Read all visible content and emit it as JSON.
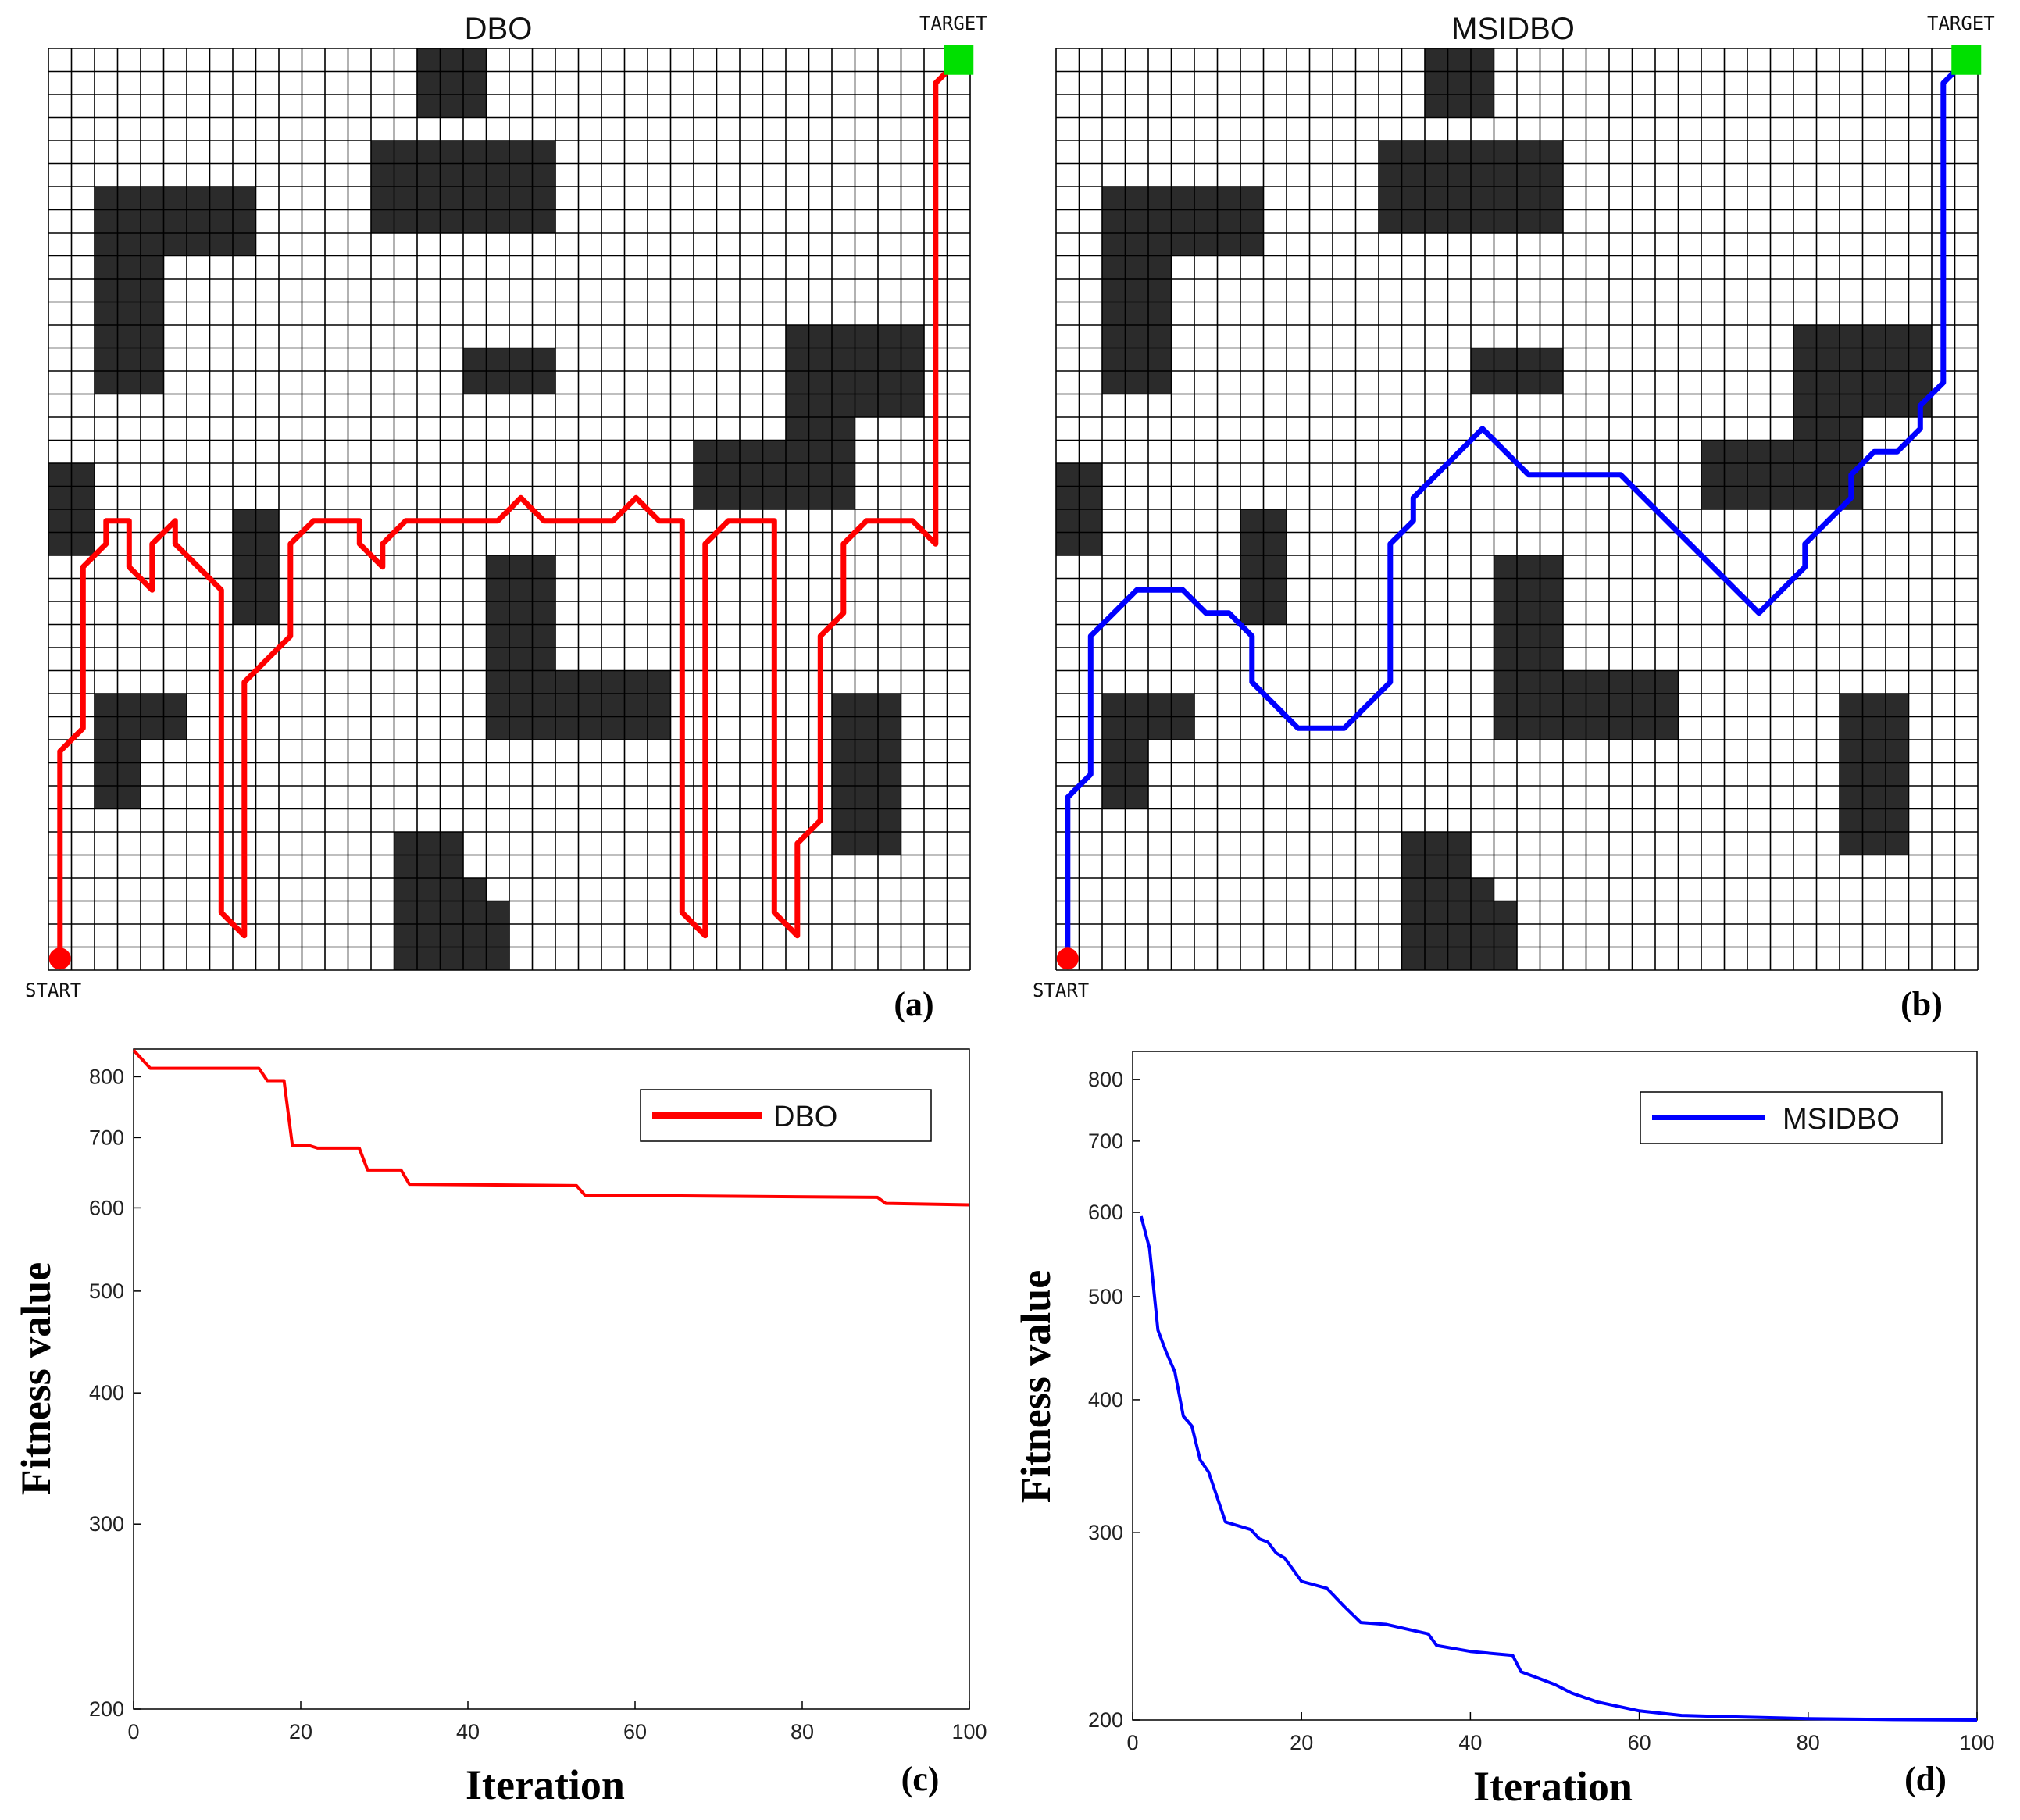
{
  "grid_common": {
    "size": 40,
    "obstacles": [
      [
        16,
        0,
        3,
        1
      ],
      [
        16,
        1,
        3,
        1
      ],
      [
        16,
        2,
        3,
        1
      ],
      [
        14,
        4,
        8,
        1
      ],
      [
        14,
        5,
        8,
        1
      ],
      [
        14,
        6,
        8,
        1
      ],
      [
        14,
        7,
        8,
        1
      ],
      [
        2,
        6,
        7,
        1
      ],
      [
        2,
        7,
        7,
        1
      ],
      [
        2,
        8,
        7,
        1
      ],
      [
        2,
        9,
        3,
        1
      ],
      [
        2,
        10,
        3,
        1
      ],
      [
        2,
        11,
        3,
        1
      ],
      [
        2,
        12,
        3,
        1
      ],
      [
        2,
        13,
        3,
        1
      ],
      [
        2,
        14,
        3,
        1
      ],
      [
        18,
        13,
        4,
        1
      ],
      [
        18,
        14,
        4,
        1
      ],
      [
        32,
        12,
        6,
        1
      ],
      [
        32,
        13,
        6,
        1
      ],
      [
        32,
        14,
        6,
        1
      ],
      [
        32,
        15,
        6,
        1
      ],
      [
        32,
        16,
        3,
        1
      ],
      [
        28,
        17,
        7,
        1
      ],
      [
        28,
        18,
        7,
        1
      ],
      [
        28,
        19,
        7,
        1
      ],
      [
        0,
        18,
        2,
        1
      ],
      [
        0,
        19,
        2,
        1
      ],
      [
        0,
        20,
        2,
        1
      ],
      [
        0,
        21,
        2,
        1
      ],
      [
        8,
        20,
        2,
        1
      ],
      [
        8,
        21,
        2,
        1
      ],
      [
        8,
        22,
        2,
        1
      ],
      [
        8,
        23,
        2,
        1
      ],
      [
        8,
        24,
        2,
        1
      ],
      [
        19,
        22,
        3,
        1
      ],
      [
        19,
        23,
        3,
        1
      ],
      [
        19,
        24,
        3,
        1
      ],
      [
        19,
        25,
        3,
        1
      ],
      [
        19,
        26,
        3,
        1
      ],
      [
        19,
        27,
        8,
        1
      ],
      [
        19,
        28,
        8,
        1
      ],
      [
        19,
        29,
        8,
        1
      ],
      [
        2,
        28,
        4,
        1
      ],
      [
        2,
        29,
        4,
        1
      ],
      [
        2,
        30,
        2,
        1
      ],
      [
        2,
        31,
        2,
        1
      ],
      [
        2,
        32,
        2,
        1
      ],
      [
        34,
        28,
        3,
        1
      ],
      [
        34,
        29,
        3,
        1
      ],
      [
        34,
        30,
        3,
        1
      ],
      [
        34,
        31,
        3,
        1
      ],
      [
        34,
        32,
        3,
        1
      ],
      [
        34,
        33,
        3,
        1
      ],
      [
        34,
        34,
        3,
        1
      ],
      [
        15,
        34,
        3,
        1
      ],
      [
        15,
        35,
        3,
        1
      ],
      [
        15,
        36,
        4,
        1
      ],
      [
        15,
        37,
        5,
        1
      ],
      [
        15,
        38,
        5,
        1
      ],
      [
        15,
        39,
        5,
        1
      ]
    ],
    "start_label": "START",
    "target_label": "TARGET",
    "start_color": "#ff0000",
    "target_color": "#00e000",
    "obstacle_color": "#2b2b2b"
  },
  "panels": [
    {
      "title": "DBO",
      "tag": "(a)",
      "path_color": "#ff0000",
      "path": [
        [
          0.5,
          39.5
        ],
        [
          0.5,
          30.5
        ],
        [
          1.5,
          29.5
        ],
        [
          1.5,
          22.5
        ],
        [
          2.5,
          21.5
        ],
        [
          2.5,
          20.5
        ],
        [
          3.5,
          20.5
        ],
        [
          3.5,
          22.5
        ],
        [
          4.5,
          23.5
        ],
        [
          4.5,
          21.5
        ],
        [
          5.5,
          20.5
        ],
        [
          5.5,
          21.5
        ],
        [
          7.5,
          23.5
        ],
        [
          7.5,
          37.5
        ],
        [
          8.5,
          38.5
        ],
        [
          8.5,
          27.5
        ],
        [
          10.5,
          25.5
        ],
        [
          10.5,
          21.5
        ],
        [
          11.5,
          20.5
        ],
        [
          13.5,
          20.5
        ],
        [
          13.5,
          21.5
        ],
        [
          14.5,
          22.5
        ],
        [
          14.5,
          21.5
        ],
        [
          15.5,
          20.5
        ],
        [
          19.5,
          20.5
        ],
        [
          20.5,
          19.5
        ],
        [
          21.5,
          20.5
        ],
        [
          24.5,
          20.5
        ],
        [
          25.5,
          19.5
        ],
        [
          26.5,
          20.5
        ],
        [
          27.5,
          20.5
        ],
        [
          27.5,
          37.5
        ],
        [
          28.5,
          38.5
        ],
        [
          28.5,
          21.5
        ],
        [
          29.5,
          20.5
        ],
        [
          31.5,
          20.5
        ],
        [
          31.5,
          37.5
        ],
        [
          32.5,
          38.5
        ],
        [
          32.5,
          34.5
        ],
        [
          33.5,
          33.5
        ],
        [
          33.5,
          25.5
        ],
        [
          34.5,
          24.5
        ],
        [
          34.5,
          21.5
        ],
        [
          35.5,
          20.5
        ],
        [
          37.5,
          20.5
        ],
        [
          38.5,
          21.5
        ],
        [
          38.5,
          1.5
        ],
        [
          39.5,
          0.5
        ]
      ]
    },
    {
      "title": "MSIDBO",
      "tag": "(b)",
      "path_color": "#0000ff",
      "path": [
        [
          0.5,
          39.5
        ],
        [
          0.5,
          32.5
        ],
        [
          1.5,
          31.5
        ],
        [
          1.5,
          25.5
        ],
        [
          2.5,
          24.5
        ],
        [
          3.5,
          23.5
        ],
        [
          5.5,
          23.5
        ],
        [
          6.5,
          24.5
        ],
        [
          7.5,
          24.5
        ],
        [
          8.5,
          25.5
        ],
        [
          8.5,
          27.5
        ],
        [
          10.5,
          29.5
        ],
        [
          12.5,
          29.5
        ],
        [
          14.5,
          27.5
        ],
        [
          14.5,
          21.5
        ],
        [
          15.5,
          20.5
        ],
        [
          15.5,
          19.5
        ],
        [
          18.5,
          16.5
        ],
        [
          20.5,
          18.5
        ],
        [
          24.5,
          18.5
        ],
        [
          30.5,
          24.5
        ],
        [
          32.5,
          22.5
        ],
        [
          32.5,
          21.5
        ],
        [
          34.5,
          19.5
        ],
        [
          34.5,
          18.5
        ],
        [
          35.5,
          17.5
        ],
        [
          36.5,
          17.5
        ],
        [
          37.5,
          16.5
        ],
        [
          37.5,
          15.5
        ],
        [
          38.5,
          14.5
        ],
        [
          38.5,
          1.5
        ],
        [
          39.5,
          0.5
        ]
      ]
    }
  ],
  "chart_data": [
    {
      "type": "line",
      "tag": "(c)",
      "title": "",
      "xlabel": "Iteration",
      "ylabel": "Fitness value",
      "xlim": [
        0,
        100
      ],
      "ylim": [
        200,
        850
      ],
      "yscale": "log",
      "xticks": [
        0,
        20,
        40,
        60,
        80,
        100
      ],
      "yticks": [
        200,
        300,
        400,
        500,
        600,
        700,
        800
      ],
      "legend": "top-right",
      "series": [
        {
          "name": "DBO",
          "color": "#ff0000",
          "x": [
            0,
            2,
            15,
            16,
            18,
            19,
            21,
            22,
            27,
            28,
            32,
            33,
            53,
            54,
            89,
            90,
            100
          ],
          "y": [
            848,
            815,
            815,
            793,
            793,
            688,
            688,
            684,
            684,
            652,
            652,
            632,
            630,
            617,
            614,
            606,
            604
          ]
        }
      ]
    },
    {
      "type": "line",
      "tag": "(d)",
      "title": "",
      "xlabel": "Iteration",
      "ylabel": "Fitness value",
      "xlim": [
        0,
        100
      ],
      "ylim": [
        200,
        850
      ],
      "yscale": "log",
      "xticks": [
        0,
        20,
        40,
        60,
        80,
        100
      ],
      "yticks": [
        200,
        300,
        400,
        500,
        600,
        700,
        800
      ],
      "legend": "top-right",
      "series": [
        {
          "name": "MSIDBO",
          "color": "#0000ff",
          "x": [
            1,
            2,
            3,
            4,
            5,
            6,
            7,
            8,
            9,
            11,
            14,
            15,
            16,
            17,
            18,
            20,
            23,
            25,
            27,
            30,
            35,
            36,
            40,
            45,
            46,
            48,
            50,
            52,
            55,
            60,
            65,
            70,
            80,
            90,
            100
          ],
          "y": [
            595,
            555,
            465,
            443,
            425,
            386,
            378,
            351,
            342,
            307,
            302,
            296,
            294,
            287,
            284,
            270,
            266,
            256,
            247,
            246,
            241,
            235,
            232,
            230,
            222,
            219,
            216,
            212,
            208,
            204,
            202,
            201.5,
            200.6,
            200.2,
            200
          ]
        }
      ]
    }
  ]
}
